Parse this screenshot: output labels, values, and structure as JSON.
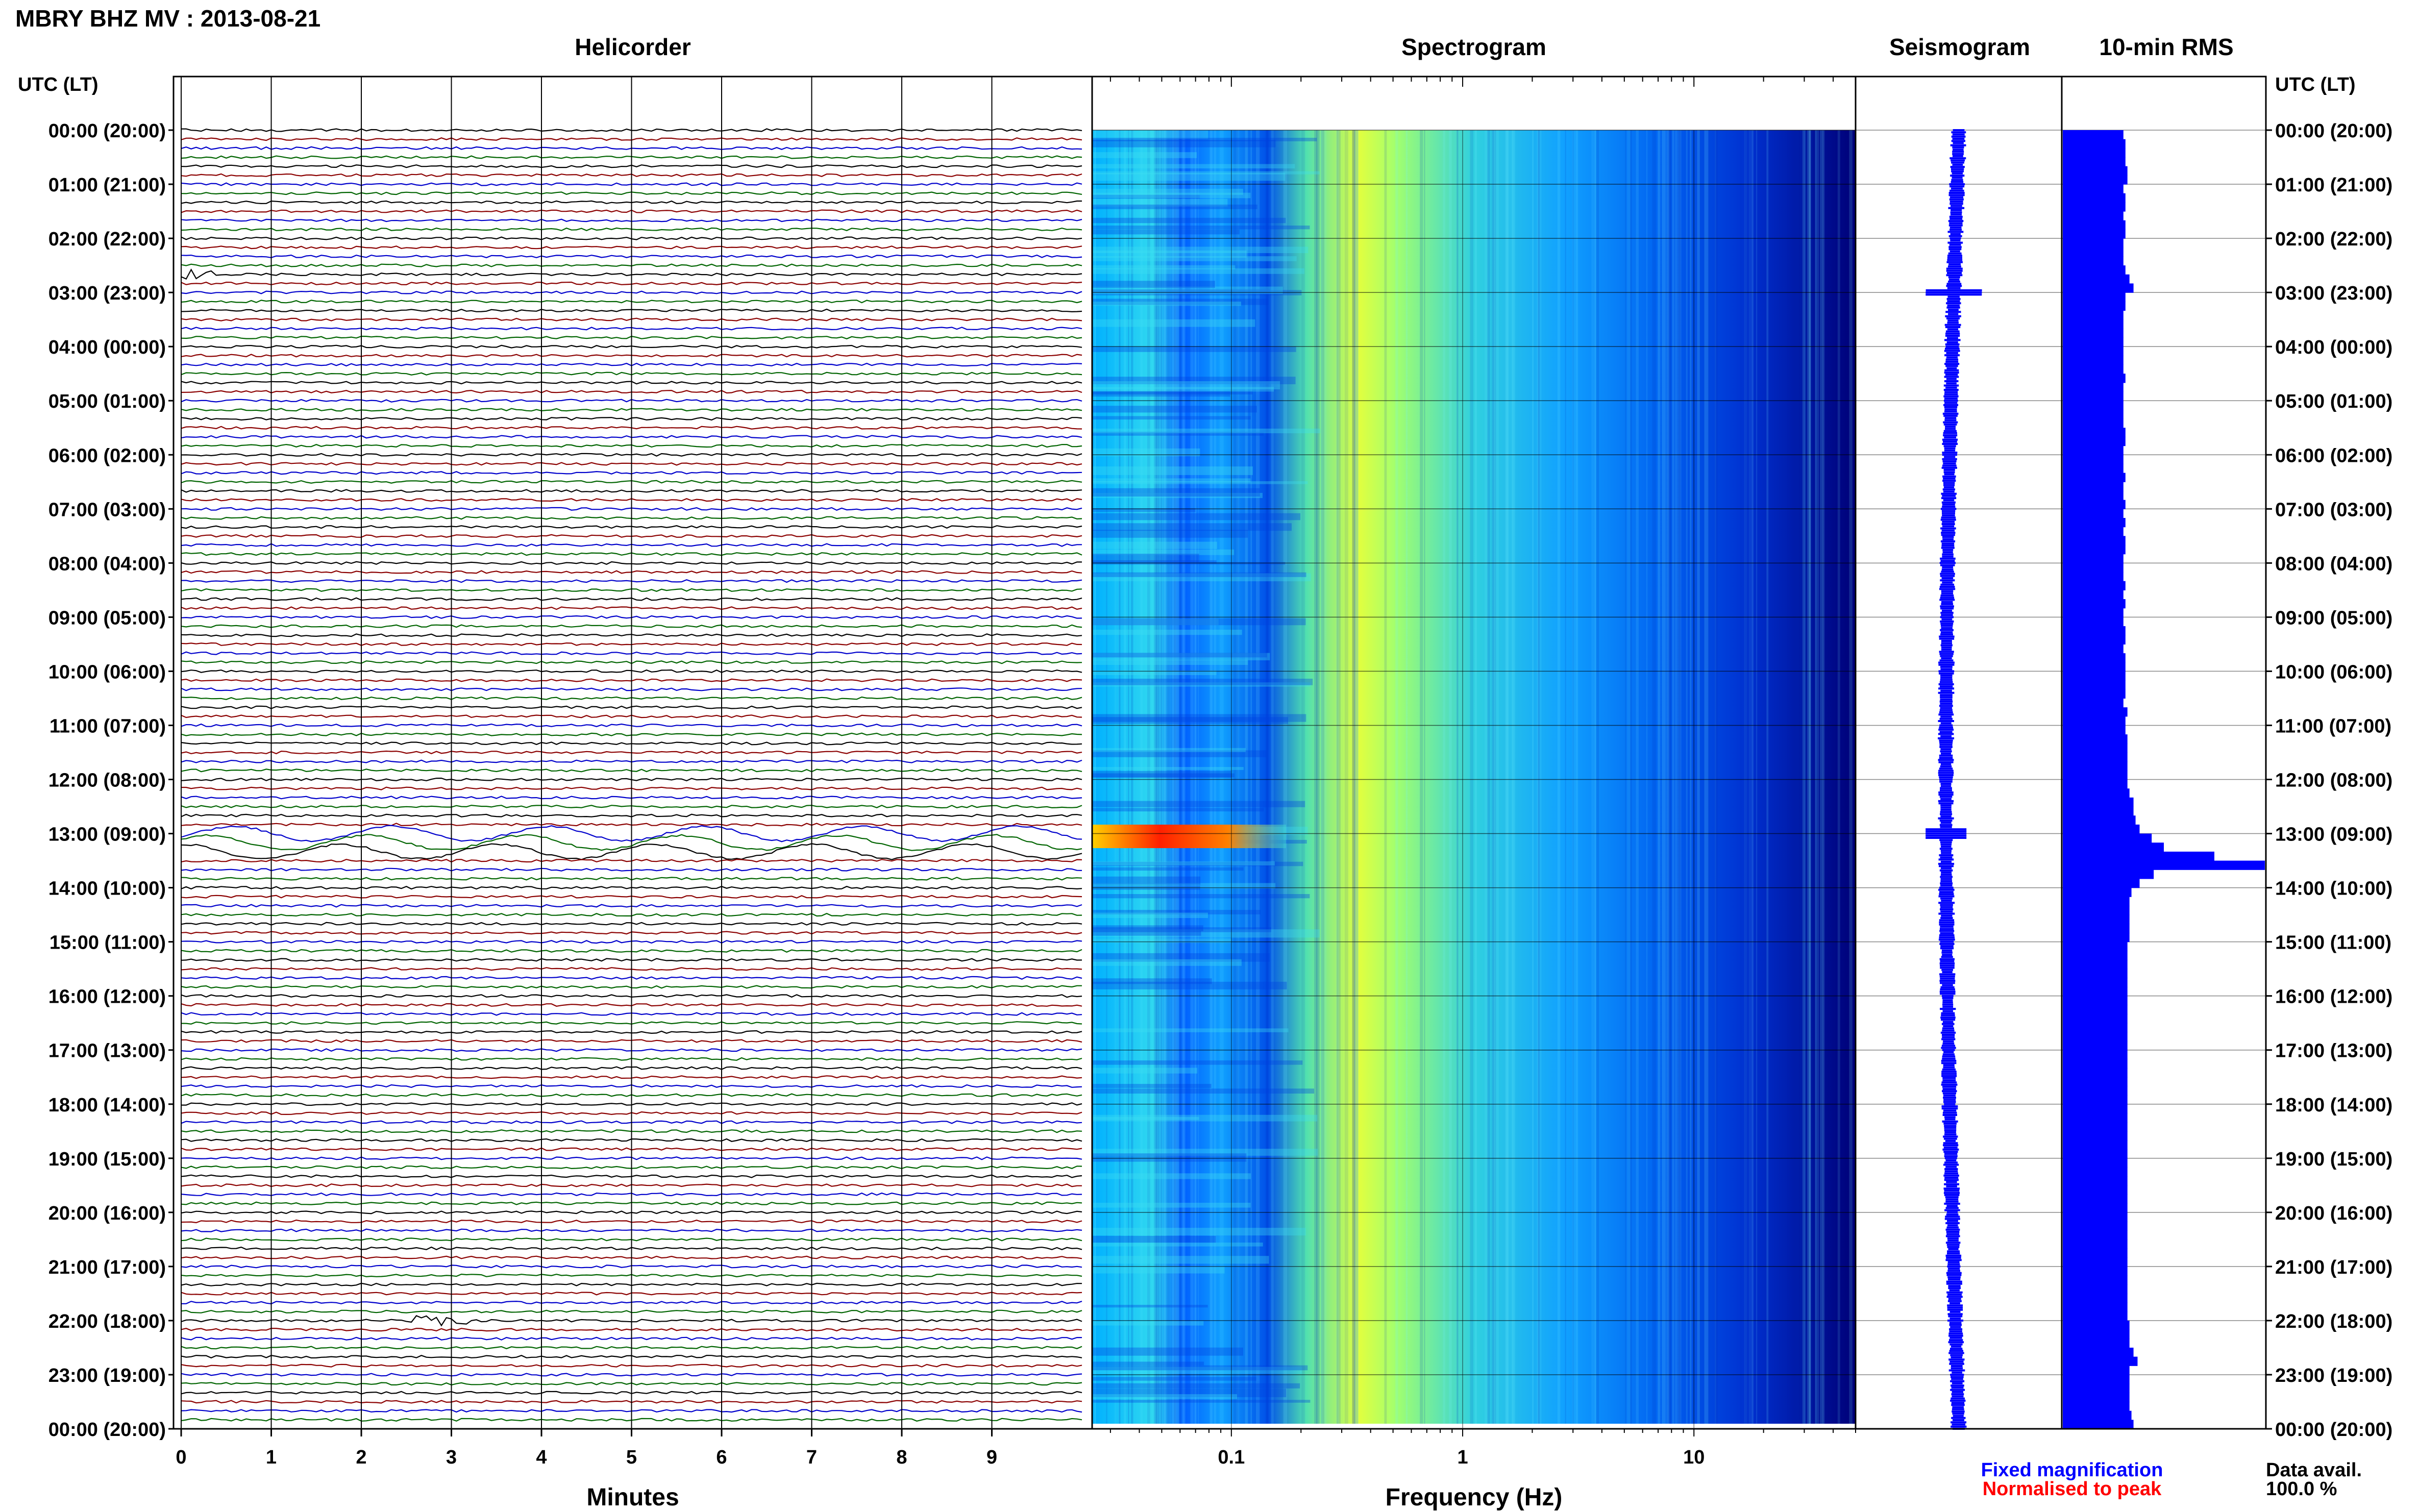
{
  "page_title": "MBRY BHZ MV : 2013-08-21",
  "panel_titles": {
    "helicorder": "Helicorder",
    "spectrogram": "Spectrogram",
    "seismogram": "Seismogram",
    "rms": "10-min RMS"
  },
  "axis_header_left": "UTC (LT)",
  "axis_header_right": "UTC (LT)",
  "time_labels": [
    "00:00 (20:00)",
    "01:00 (21:00)",
    "02:00 (22:00)",
    "03:00 (23:00)",
    "04:00 (00:00)",
    "05:00 (01:00)",
    "06:00 (02:00)",
    "07:00 (03:00)",
    "08:00 (04:00)",
    "09:00 (05:00)",
    "10:00 (06:00)",
    "11:00 (07:00)",
    "12:00 (08:00)",
    "13:00 (09:00)",
    "14:00 (10:00)",
    "15:00 (11:00)",
    "16:00 (12:00)",
    "17:00 (13:00)",
    "18:00 (14:00)",
    "19:00 (15:00)",
    "20:00 (16:00)",
    "21:00 (17:00)",
    "22:00 (18:00)",
    "23:00 (19:00)",
    "00:00 (20:00)"
  ],
  "helicorder": {
    "xlabel": "Minutes",
    "ticks": [
      "0",
      "1",
      "2",
      "3",
      "4",
      "5",
      "6",
      "7",
      "8",
      "9"
    ],
    "trace_colors": [
      "#000000",
      "#8b0000",
      "#0000cc",
      "#006400"
    ]
  },
  "spectrogram": {
    "xlabel": "Frequency (Hz)",
    "ticks": [
      "0.1",
      "1",
      "10"
    ],
    "scale": "log",
    "colormap": [
      "#000080",
      "#0000ff",
      "#0080ff",
      "#00c0ff",
      "#40e0d0",
      "#80ff80",
      "#ffff00",
      "#ff8000",
      "#ff0000"
    ]
  },
  "legend": {
    "fixed": "Fixed magnification",
    "fixed_color": "#0000ff",
    "normalised": "Normalised to peak",
    "normalised_color": "#ff0000"
  },
  "data_avail": {
    "label": "Data avail.",
    "value": "100.0 %"
  },
  "chart_data": [
    {
      "type": "line",
      "title": "Helicorder",
      "xlabel": "Minutes",
      "xlim": [
        0,
        10
      ],
      "rows": 144,
      "row_minutes": 10,
      "events": [
        {
          "time_utc": "02:40",
          "minute": 0.3,
          "label": ""
        },
        {
          "time_utc": "13:00",
          "minute": 0,
          "duration_min": 10,
          "label": ""
        },
        {
          "time_utc": "22:00",
          "minute": 3.0,
          "label": ""
        }
      ]
    },
    {
      "type": "heatmap",
      "title": "Spectrogram",
      "xlabel": "Frequency (Hz)",
      "xlim": [
        0.025,
        50
      ],
      "xscale": "log",
      "peak_band_hz": [
        0.25,
        0.5
      ],
      "event_time_utc": "13:00",
      "event_band_hz": [
        0.03,
        0.1
      ]
    },
    {
      "type": "bar",
      "title": "10-min RMS",
      "time_step_min": 10,
      "values": [
        0.3,
        0.31,
        0.31,
        0.31,
        0.32,
        0.32,
        0.3,
        0.31,
        0.31,
        0.3,
        0.31,
        0.31,
        0.3,
        0.3,
        0.3,
        0.31,
        0.33,
        0.35,
        0.31,
        0.31,
        0.3,
        0.3,
        0.3,
        0.3,
        0.3,
        0.3,
        0.3,
        0.31,
        0.3,
        0.3,
        0.3,
        0.3,
        0.3,
        0.31,
        0.31,
        0.3,
        0.3,
        0.3,
        0.31,
        0.3,
        0.3,
        0.31,
        0.3,
        0.31,
        0.3,
        0.31,
        0.31,
        0.3,
        0.3,
        0.3,
        0.31,
        0.3,
        0.31,
        0.3,
        0.3,
        0.31,
        0.31,
        0.3,
        0.31,
        0.31,
        0.31,
        0.31,
        0.31,
        0.3,
        0.32,
        0.31,
        0.31,
        0.32,
        0.32,
        0.32,
        0.32,
        0.32,
        0.32,
        0.33,
        0.35,
        0.35,
        0.36,
        0.38,
        0.44,
        0.5,
        0.75,
        1.0,
        0.45,
        0.38,
        0.34,
        0.33,
        0.33,
        0.33,
        0.33,
        0.33,
        0.32,
        0.32,
        0.32,
        0.32,
        0.32,
        0.32,
        0.32,
        0.32,
        0.32,
        0.32,
        0.32,
        0.32,
        0.32,
        0.32,
        0.32,
        0.32,
        0.32,
        0.32,
        0.32,
        0.32,
        0.32,
        0.32,
        0.32,
        0.32,
        0.32,
        0.32,
        0.32,
        0.32,
        0.32,
        0.32,
        0.32,
        0.32,
        0.32,
        0.32,
        0.32,
        0.32,
        0.32,
        0.32,
        0.32,
        0.32,
        0.32,
        0.32,
        0.33,
        0.33,
        0.33,
        0.35,
        0.37,
        0.33,
        0.33,
        0.33,
        0.33,
        0.33,
        0.34,
        0.35
      ],
      "ylim": [
        0,
        1
      ]
    }
  ]
}
